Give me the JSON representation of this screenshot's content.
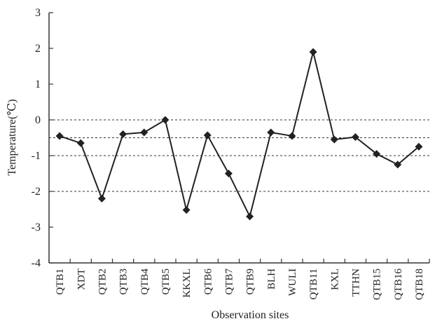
{
  "chart_data": {
    "type": "line",
    "xlabel": "Observation sites",
    "ylabel": "Temperature(℃)",
    "ylim": [
      -4,
      3
    ],
    "yticks": [
      3,
      2,
      1,
      0,
      -1,
      -2,
      -3,
      -4
    ],
    "reference_lines": [
      0,
      -0.5,
      -1,
      -2
    ],
    "categories": [
      "QTB1",
      "XDT",
      "QTB2",
      "QTB3",
      "QTB4",
      "QTB5",
      "KKXL",
      "QTB6",
      "QTB7",
      "QTB9",
      "BLH",
      "WULI",
      "QTB11",
      "KXL",
      "TTHN",
      "QTB15",
      "QTB16",
      "QTB18"
    ],
    "values": [
      -0.45,
      -0.65,
      -2.2,
      -0.4,
      -0.35,
      0.0,
      -2.52,
      -0.43,
      -1.5,
      -2.7,
      -0.35,
      -0.45,
      1.9,
      -0.55,
      -0.48,
      -0.95,
      -1.25,
      -0.75
    ],
    "colors": {
      "line": "#222222",
      "axis": "#333333",
      "reference": "#333333"
    }
  }
}
